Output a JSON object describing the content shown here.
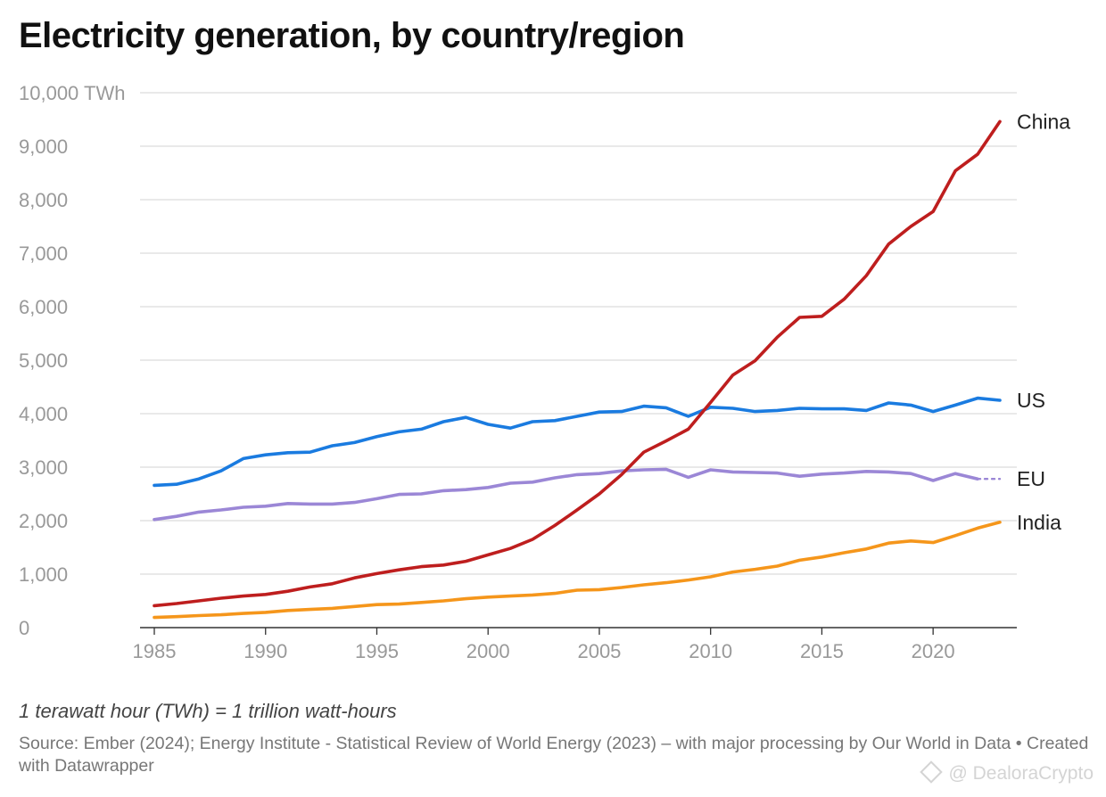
{
  "page": {
    "title": "Electricity generation, by country/region",
    "note": "1 terawatt hour (TWh) = 1 trillion watt-hours",
    "source": "Source: Ember (2024); Energy Institute - Statistical Review of World Energy (2023) – with major processing by Our World in Data • Created with Datawrapper",
    "watermark": "@ DealoraCrypto"
  },
  "chart_data": {
    "type": "line",
    "title": "Electricity generation, by country/region",
    "xlabel": "",
    "ylabel": "",
    "xlim": [
      1985,
      2023
    ],
    "ylim": [
      0,
      10000
    ],
    "x_ticks": [
      {
        "value": 1985,
        "label": "1985"
      },
      {
        "value": 1990,
        "label": "1990"
      },
      {
        "value": 1995,
        "label": "1995"
      },
      {
        "value": 2000,
        "label": "2000"
      },
      {
        "value": 2005,
        "label": "2005"
      },
      {
        "value": 2010,
        "label": "2010"
      },
      {
        "value": 2015,
        "label": "2015"
      },
      {
        "value": 2020,
        "label": "2020"
      }
    ],
    "y_ticks": [
      {
        "value": 0,
        "label": "0"
      },
      {
        "value": 1000,
        "label": "1,000"
      },
      {
        "value": 2000,
        "label": "2,000"
      },
      {
        "value": 3000,
        "label": "3,000"
      },
      {
        "value": 4000,
        "label": "4,000"
      },
      {
        "value": 5000,
        "label": "5,000"
      },
      {
        "value": 6000,
        "label": "6,000"
      },
      {
        "value": 7000,
        "label": "7,000"
      },
      {
        "value": 8000,
        "label": "8,000"
      },
      {
        "value": 9000,
        "label": "9,000"
      },
      {
        "value": 10000,
        "label": "10,000 TWh"
      }
    ],
    "grid": true,
    "legend": "direct labels at line ends (right)",
    "series": [
      {
        "name": "China",
        "color": "#be1e1e",
        "x": [
          1985,
          1986,
          1987,
          1988,
          1989,
          1990,
          1991,
          1992,
          1993,
          1994,
          1995,
          1996,
          1997,
          1998,
          1999,
          2000,
          2001,
          2002,
          2003,
          2004,
          2005,
          2006,
          2007,
          2008,
          2009,
          2010,
          2011,
          2012,
          2013,
          2014,
          2015,
          2016,
          2017,
          2018,
          2019,
          2020,
          2021,
          2022,
          2023
        ],
        "values": [
          410,
          450,
          500,
          550,
          590,
          620,
          680,
          760,
          820,
          930,
          1010,
          1080,
          1140,
          1170,
          1240,
          1360,
          1480,
          1650,
          1910,
          2200,
          2500,
          2860,
          3280,
          3490,
          3710,
          4210,
          4720,
          4990,
          5430,
          5800,
          5820,
          6140,
          6580,
          7170,
          7500,
          7780,
          8540,
          8850,
          9460
        ]
      },
      {
        "name": "US",
        "color": "#1a7be0",
        "x": [
          1985,
          1986,
          1987,
          1988,
          1989,
          1990,
          1991,
          1992,
          1993,
          1994,
          1995,
          1996,
          1997,
          1998,
          1999,
          2000,
          2001,
          2002,
          2003,
          2004,
          2005,
          2006,
          2007,
          2008,
          2009,
          2010,
          2011,
          2012,
          2013,
          2014,
          2015,
          2016,
          2017,
          2018,
          2019,
          2020,
          2021,
          2022,
          2023
        ],
        "values": [
          2660,
          2680,
          2780,
          2930,
          3160,
          3230,
          3270,
          3280,
          3400,
          3460,
          3570,
          3660,
          3710,
          3850,
          3930,
          3800,
          3730,
          3850,
          3870,
          3950,
          4030,
          4040,
          4140,
          4110,
          3950,
          4120,
          4100,
          4040,
          4060,
          4100,
          4090,
          4090,
          4060,
          4200,
          4160,
          4040,
          4160,
          4290,
          4250
        ]
      },
      {
        "name": "EU",
        "color": "#9b87d6",
        "dashed_extension_to": 2023,
        "x": [
          1985,
          1986,
          1987,
          1988,
          1989,
          1990,
          1991,
          1992,
          1993,
          1994,
          1995,
          1996,
          1997,
          1998,
          1999,
          2000,
          2001,
          2002,
          2003,
          2004,
          2005,
          2006,
          2007,
          2008,
          2009,
          2010,
          2011,
          2012,
          2013,
          2014,
          2015,
          2016,
          2017,
          2018,
          2019,
          2020,
          2021,
          2022
        ],
        "values": [
          2020,
          2080,
          2160,
          2200,
          2250,
          2270,
          2320,
          2310,
          2310,
          2340,
          2410,
          2490,
          2500,
          2560,
          2580,
          2620,
          2700,
          2720,
          2800,
          2860,
          2880,
          2930,
          2950,
          2960,
          2810,
          2950,
          2910,
          2900,
          2890,
          2830,
          2870,
          2890,
          2920,
          2910,
          2880,
          2750,
          2880,
          2780
        ]
      },
      {
        "name": "India",
        "color": "#f5961b",
        "x": [
          1985,
          1986,
          1987,
          1988,
          1989,
          1990,
          1991,
          1992,
          1993,
          1994,
          1995,
          1996,
          1997,
          1998,
          1999,
          2000,
          2001,
          2002,
          2003,
          2004,
          2005,
          2006,
          2007,
          2008,
          2009,
          2010,
          2011,
          2012,
          2013,
          2014,
          2015,
          2016,
          2017,
          2018,
          2019,
          2020,
          2021,
          2022,
          2023
        ],
        "values": [
          190,
          205,
          225,
          240,
          265,
          285,
          320,
          340,
          360,
          395,
          430,
          440,
          470,
          500,
          540,
          570,
          590,
          610,
          640,
          700,
          710,
          750,
          800,
          840,
          890,
          950,
          1040,
          1090,
          1150,
          1260,
          1320,
          1400,
          1470,
          1580,
          1620,
          1590,
          1720,
          1860,
          1970
        ]
      }
    ]
  }
}
